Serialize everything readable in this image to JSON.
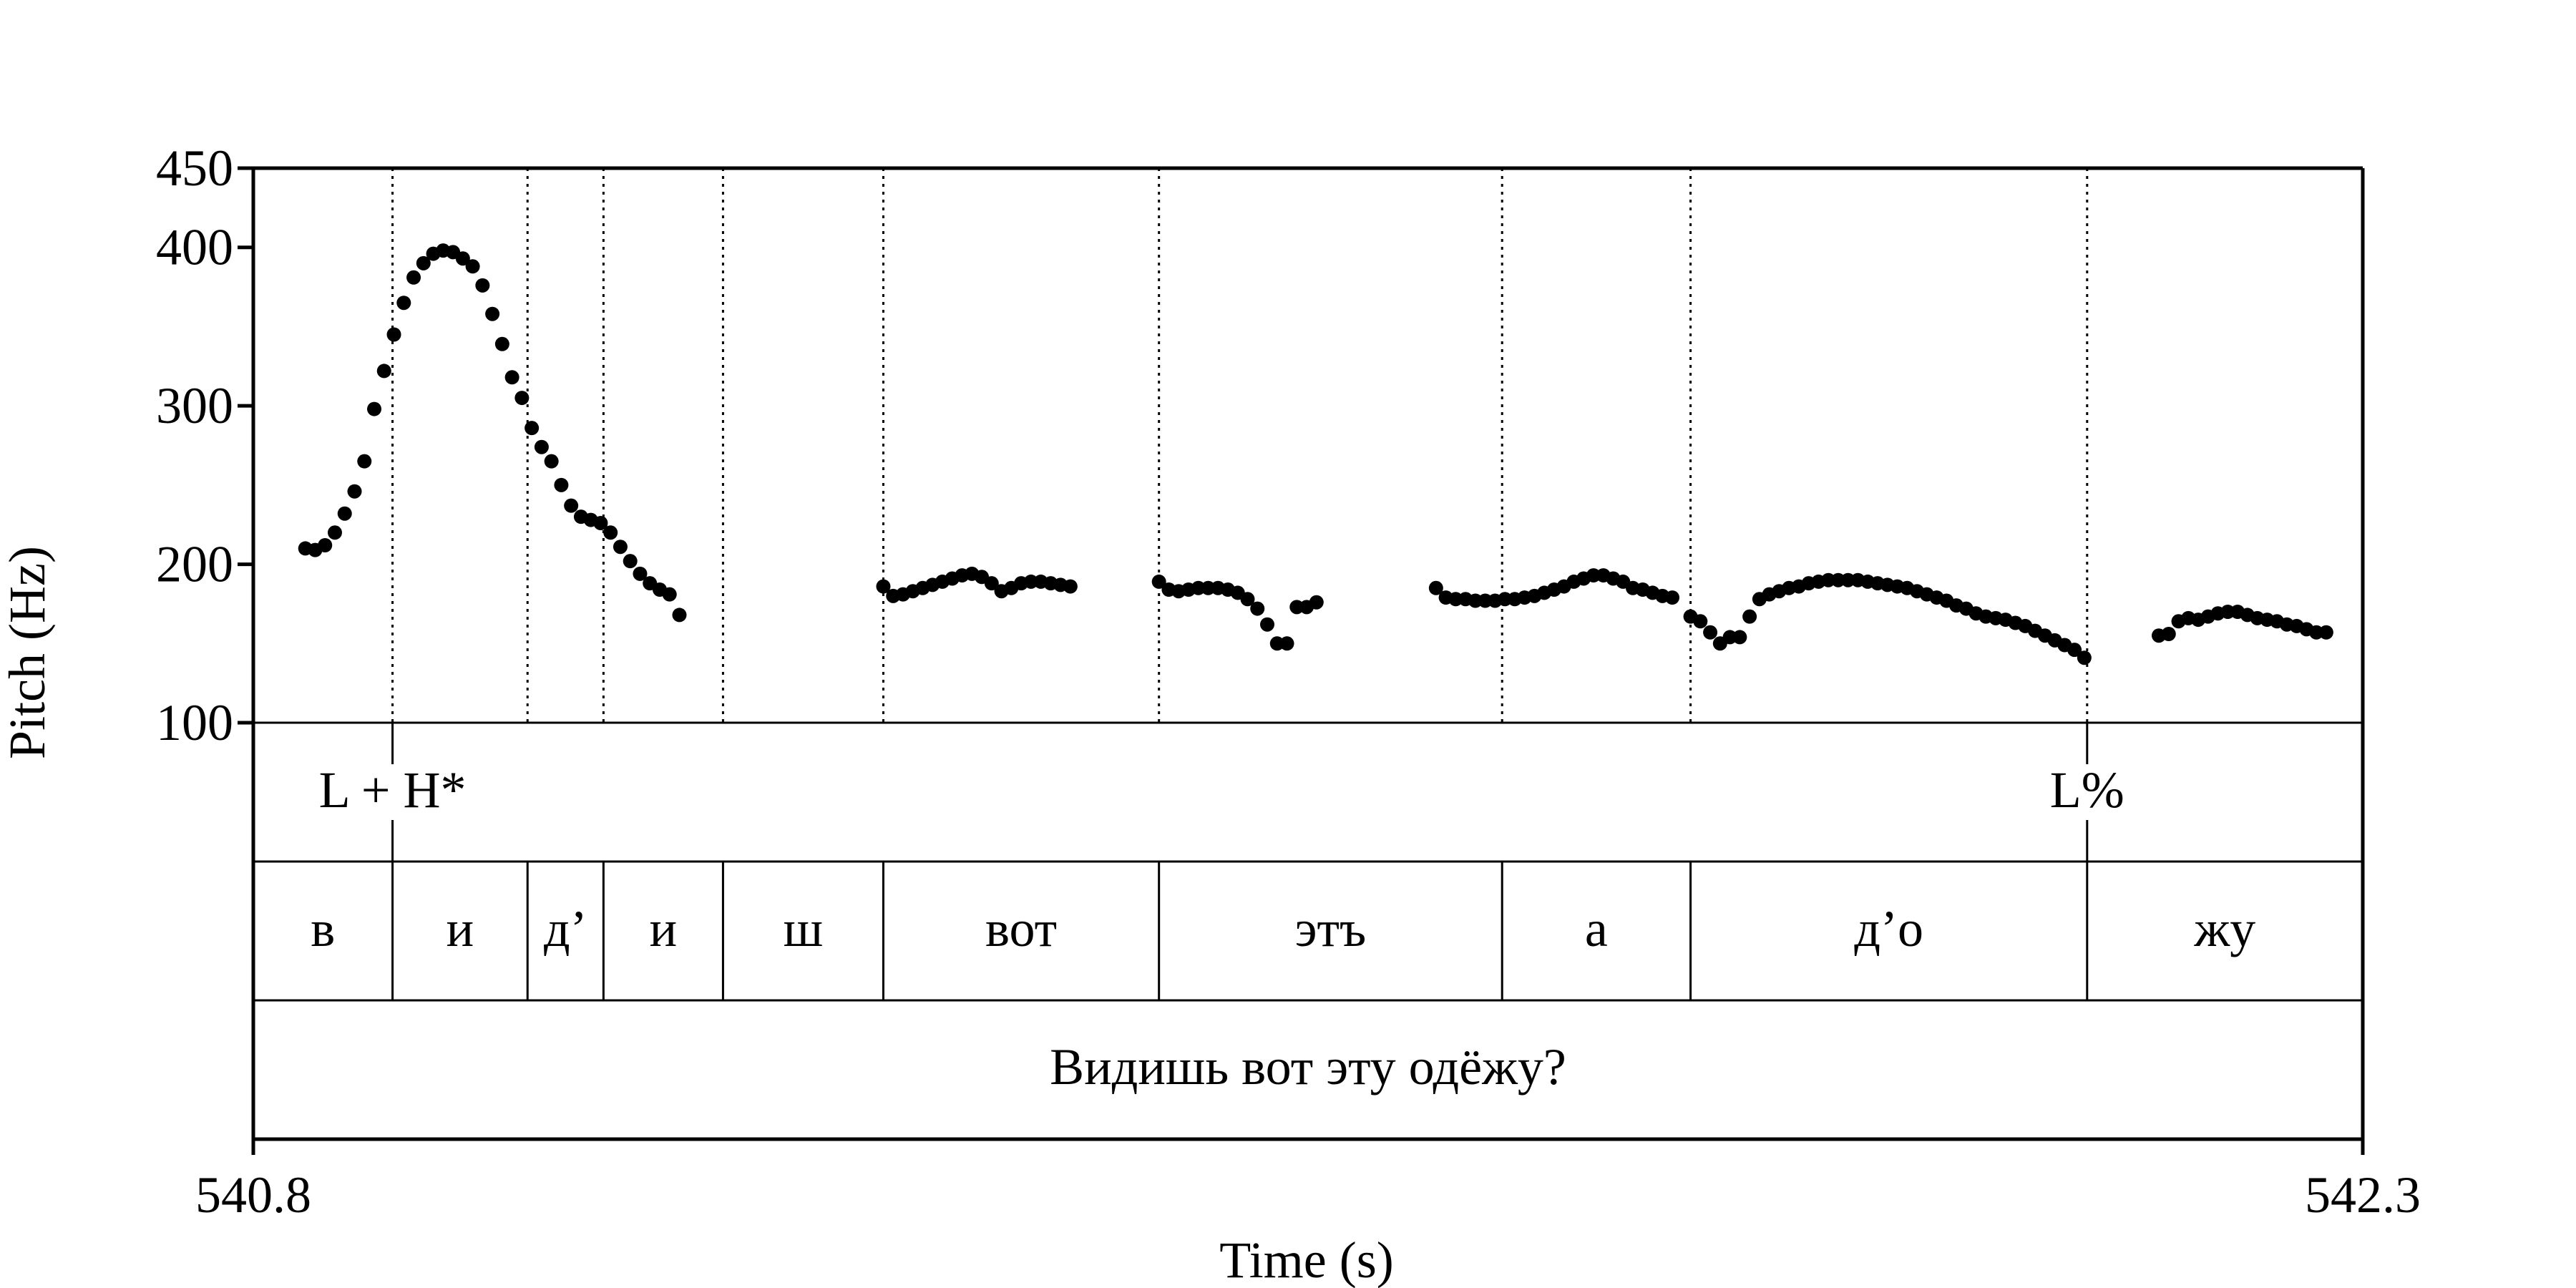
{
  "chart_data": {
    "type": "scatter",
    "xlabel": "Time (s)",
    "ylabel": "Pitch (Hz)",
    "xlim": [
      540.8,
      542.3
    ],
    "ylim": [
      100,
      450
    ],
    "x_ticks": [
      "540.8",
      "542.3"
    ],
    "y_ticks": [
      {
        "value": 100,
        "label": "100"
      },
      {
        "value": 200,
        "label": "200"
      },
      {
        "value": 300,
        "label": "300"
      },
      {
        "value": 400,
        "label": "400"
      },
      {
        "value": 450,
        "label": "450"
      }
    ],
    "grid": false,
    "boundaries": [
      540.899,
      540.995,
      541.049,
      541.134,
      541.248,
      541.444,
      541.688,
      541.822,
      542.104
    ],
    "tones": [
      {
        "label": "L + H*",
        "time": 540.899
      },
      {
        "label": "L%",
        "time": 542.104
      }
    ],
    "segments": [
      {
        "label": "в",
        "start": 540.8,
        "end": 540.899
      },
      {
        "label": "и",
        "start": 540.899,
        "end": 540.995
      },
      {
        "label": "д’",
        "start": 540.995,
        "end": 541.049
      },
      {
        "label": "и",
        "start": 541.049,
        "end": 541.134
      },
      {
        "label": "ш",
        "start": 541.134,
        "end": 541.248
      },
      {
        "label": "вот",
        "start": 541.248,
        "end": 541.444
      },
      {
        "label": "этъ",
        "start": 541.444,
        "end": 541.688
      },
      {
        "label": "а",
        "start": 541.688,
        "end": 541.822
      },
      {
        "label": "д’о",
        "start": 541.822,
        "end": 542.104
      },
      {
        "label": "жу",
        "start": 542.104,
        "end": 542.3
      }
    ],
    "sentence": "Видишь вот эту одёжу?",
    "series": [
      {
        "points": [
          [
            540.837,
            210
          ],
          [
            540.844,
            209
          ],
          [
            540.851,
            212
          ],
          [
            540.858,
            220
          ],
          [
            540.865,
            232
          ],
          [
            540.872,
            246
          ],
          [
            540.879,
            265
          ],
          [
            540.886,
            298
          ],
          [
            540.893,
            322
          ],
          [
            540.9,
            345
          ],
          [
            540.907,
            365
          ],
          [
            540.914,
            381
          ],
          [
            540.921,
            390
          ],
          [
            540.928,
            396
          ],
          [
            540.935,
            398
          ],
          [
            540.942,
            397
          ],
          [
            540.949,
            393
          ],
          [
            540.956,
            388
          ],
          [
            540.963,
            376
          ],
          [
            540.97,
            358
          ],
          [
            540.977,
            339
          ],
          [
            540.984,
            318
          ],
          [
            540.991,
            305
          ],
          [
            540.998,
            286
          ],
          [
            541.005,
            274
          ],
          [
            541.012,
            265
          ],
          [
            541.019,
            250
          ],
          [
            541.026,
            237
          ],
          [
            541.033,
            230
          ],
          [
            541.04,
            228
          ],
          [
            541.047,
            226
          ],
          [
            541.054,
            220
          ],
          [
            541.061,
            211
          ],
          [
            541.068,
            202
          ],
          [
            541.075,
            194
          ],
          [
            541.082,
            188
          ],
          [
            541.089,
            184
          ],
          [
            541.096,
            181
          ],
          [
            541.103,
            168
          ],
          [
            541.248,
            186
          ],
          [
            541.255,
            180
          ],
          [
            541.262,
            181
          ],
          [
            541.269,
            183
          ],
          [
            541.276,
            185
          ],
          [
            541.283,
            187
          ],
          [
            541.29,
            189
          ],
          [
            541.297,
            191
          ],
          [
            541.304,
            193
          ],
          [
            541.311,
            194
          ],
          [
            541.318,
            192
          ],
          [
            541.325,
            188
          ],
          [
            541.332,
            183
          ],
          [
            541.339,
            185
          ],
          [
            541.346,
            188
          ],
          [
            541.353,
            189
          ],
          [
            541.36,
            189
          ],
          [
            541.367,
            188
          ],
          [
            541.374,
            187
          ],
          [
            541.381,
            186
          ],
          [
            541.444,
            189
          ],
          [
            541.451,
            184
          ],
          [
            541.458,
            183
          ],
          [
            541.465,
            184
          ],
          [
            541.472,
            185
          ],
          [
            541.479,
            185
          ],
          [
            541.486,
            185
          ],
          [
            541.493,
            184
          ],
          [
            541.5,
            182
          ],
          [
            541.507,
            178
          ],
          [
            541.514,
            172
          ],
          [
            541.521,
            162
          ],
          [
            541.528,
            150
          ],
          [
            541.535,
            150
          ],
          [
            541.542,
            173
          ],
          [
            541.549,
            173
          ],
          [
            541.556,
            176
          ],
          [
            541.641,
            185
          ],
          [
            541.648,
            179
          ],
          [
            541.655,
            178
          ],
          [
            541.662,
            178
          ],
          [
            541.669,
            177
          ],
          [
            541.676,
            177
          ],
          [
            541.683,
            177
          ],
          [
            541.69,
            178
          ],
          [
            541.697,
            178
          ],
          [
            541.704,
            179
          ],
          [
            541.711,
            180
          ],
          [
            541.718,
            182
          ],
          [
            541.725,
            184
          ],
          [
            541.732,
            186
          ],
          [
            541.739,
            189
          ],
          [
            541.746,
            191
          ],
          [
            541.753,
            193
          ],
          [
            541.76,
            193
          ],
          [
            541.767,
            191
          ],
          [
            541.774,
            189
          ],
          [
            541.781,
            185
          ],
          [
            541.788,
            184
          ],
          [
            541.795,
            182
          ],
          [
            541.802,
            180
          ],
          [
            541.809,
            179
          ],
          [
            541.822,
            167
          ],
          [
            541.829,
            164
          ],
          [
            541.836,
            157
          ],
          [
            541.843,
            150
          ],
          [
            541.85,
            154
          ],
          [
            541.857,
            154
          ],
          [
            541.864,
            167
          ],
          [
            541.871,
            178
          ],
          [
            541.878,
            181
          ],
          [
            541.885,
            183
          ],
          [
            541.892,
            185
          ],
          [
            541.899,
            186
          ],
          [
            541.906,
            188
          ],
          [
            541.913,
            189
          ],
          [
            541.92,
            190
          ],
          [
            541.927,
            190
          ],
          [
            541.934,
            190
          ],
          [
            541.941,
            190
          ],
          [
            541.948,
            189
          ],
          [
            541.955,
            188
          ],
          [
            541.962,
            187
          ],
          [
            541.969,
            186
          ],
          [
            541.976,
            185
          ],
          [
            541.983,
            183
          ],
          [
            541.99,
            181
          ],
          [
            541.997,
            179
          ],
          [
            542.004,
            177
          ],
          [
            542.011,
            174
          ],
          [
            542.018,
            172
          ],
          [
            542.025,
            169
          ],
          [
            542.032,
            167
          ],
          [
            542.039,
            166
          ],
          [
            542.046,
            165
          ],
          [
            542.053,
            163
          ],
          [
            542.06,
            161
          ],
          [
            542.067,
            158
          ],
          [
            542.074,
            155
          ],
          [
            542.081,
            152
          ],
          [
            542.088,
            149
          ],
          [
            542.095,
            146
          ],
          [
            542.102,
            141
          ],
          [
            542.155,
            155
          ],
          [
            542.162,
            156
          ],
          [
            542.169,
            164
          ],
          [
            542.176,
            166
          ],
          [
            542.183,
            165
          ],
          [
            542.19,
            167
          ],
          [
            542.197,
            169
          ],
          [
            542.204,
            170
          ],
          [
            542.211,
            170
          ],
          [
            542.218,
            168
          ],
          [
            542.225,
            166
          ],
          [
            542.232,
            165
          ],
          [
            542.239,
            164
          ],
          [
            542.246,
            162
          ],
          [
            542.253,
            161
          ],
          [
            542.26,
            159
          ],
          [
            542.267,
            157
          ],
          [
            542.274,
            157
          ]
        ]
      }
    ]
  }
}
